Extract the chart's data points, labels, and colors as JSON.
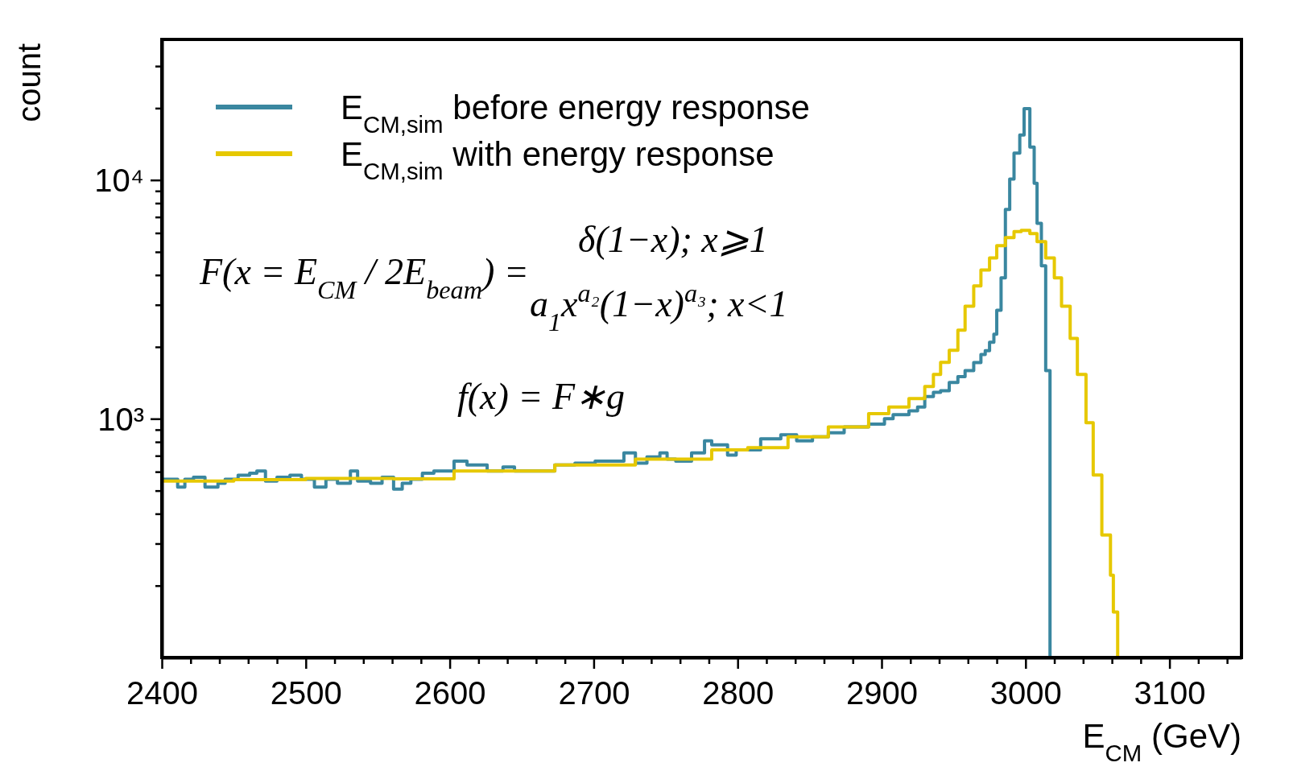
{
  "chart_data": {
    "type": "step",
    "xlabel": "E$_{CM}$ (GeV)",
    "ylabel": "count",
    "log": "y",
    "legend": "top left",
    "xlim": [
      2400,
      3150
    ],
    "ylim": [
      100,
      38800
    ],
    "xticks": [
      2400,
      {
        "value": 2420,
        "label": null
      },
      {
        "value": 2440,
        "label": null
      },
      {
        "value": 2460,
        "label": null
      },
      {
        "value": 2480,
        "label": null
      },
      2500,
      {
        "value": 2520,
        "label": null
      },
      {
        "value": 2540,
        "label": null
      },
      {
        "value": 2560,
        "label": null
      },
      {
        "value": 2580,
        "label": null
      },
      2600,
      {
        "value": 2620,
        "label": null
      },
      {
        "value": 2640,
        "label": null
      },
      {
        "value": 2660,
        "label": null
      },
      {
        "value": 2680,
        "label": null
      },
      2700,
      {
        "value": 2720,
        "label": null
      },
      {
        "value": 2740,
        "label": null
      },
      {
        "value": 2760,
        "label": null
      },
      {
        "value": 2780,
        "label": null
      },
      2800,
      {
        "value": 2820,
        "label": null
      },
      {
        "value": 2840,
        "label": null
      },
      {
        "value": 2860,
        "label": null
      },
      {
        "value": 2880,
        "label": null
      },
      2900,
      {
        "value": 2920,
        "label": null
      },
      {
        "value": 2940,
        "label": null
      },
      {
        "value": 2960,
        "label": null
      },
      {
        "value": 2980,
        "label": null
      },
      3000,
      {
        "value": 3020,
        "label": null
      },
      {
        "value": 3040,
        "label": null
      },
      {
        "value": 3060,
        "label": null
      },
      {
        "value": 3080,
        "label": null
      },
      3100,
      {
        "value": 3120,
        "label": null
      },
      {
        "value": 3140,
        "label": null
      }
    ],
    "yticks": [
      {
        "value": 200,
        "label": null
      },
      {
        "value": 300,
        "label": null
      },
      {
        "value": 400,
        "label": null
      },
      {
        "value": 500,
        "label": null
      },
      {
        "value": 600,
        "label": null
      },
      {
        "value": 700,
        "label": null
      },
      {
        "value": 800,
        "label": null
      },
      {
        "value": 900,
        "label": null
      },
      {
        "value": 1000,
        "label": "10³"
      },
      {
        "value": 2000,
        "label": null
      },
      {
        "value": 3000,
        "label": null
      },
      {
        "value": 4000,
        "label": null
      },
      {
        "value": 5000,
        "label": null
      },
      {
        "value": 6000,
        "label": null
      },
      {
        "value": 7000,
        "label": null
      },
      {
        "value": 8000,
        "label": null
      },
      {
        "value": 9000,
        "label": null
      },
      {
        "value": 10000,
        "label": "10⁴"
      },
      {
        "value": 20000,
        "label": null
      },
      {
        "value": 30000,
        "label": null
      }
    ],
    "annotations": [
      "F(x = E$_{CM}$ / 2E$_{beam}$) =",
      "δ(1−x); x⩾1",
      "a$_{1}$x$^{a₂}$(1−x)$^{a₃}$; x<1",
      "f(x) = F∗g"
    ],
    "series": [
      {
        "name": "E$_{CM,sim}$ before energy response",
        "color": "#3a87a0",
        "x": [
          2400,
          2411,
          2416,
          2422,
          2430,
          2439,
          2444,
          2453,
          2461,
          2466,
          2472,
          2480,
          2489,
          2497,
          2506,
          2514,
          2522,
          2531,
          2536,
          2545,
          2553,
          2561,
          2567,
          2573,
          2581,
          2589,
          2603,
          2612,
          2626,
          2637,
          2645,
          2659,
          2673,
          2687,
          2701,
          2721,
          2729,
          2737,
          2746,
          2751,
          2757,
          2768,
          2777,
          2782,
          2793,
          2799,
          2807,
          2816,
          2830,
          2841,
          2852,
          2863,
          2874,
          2891,
          2902,
          2908,
          2919,
          2925,
          2930,
          2936,
          2941,
          2947,
          2953,
          2958,
          2964,
          2969,
          2972,
          2975,
          2978,
          2980,
          2983,
          2986,
          2989,
          2992,
          2996,
          2999,
          3003,
          3006,
          3008,
          3011,
          3014,
          3017
        ],
        "values": [
          558,
          517,
          558,
          569,
          517,
          537,
          558,
          580,
          592,
          604,
          548,
          569,
          580,
          558,
          517,
          558,
          537,
          604,
          548,
          537,
          569,
          507,
          537,
          558,
          592,
          604,
          665,
          640,
          604,
          628,
          604,
          604,
          640,
          652,
          665,
          719,
          652,
          692,
          719,
          678,
          665,
          719,
          808,
          777,
          705,
          741,
          741,
          824,
          856,
          808,
          840,
          873,
          925,
          950,
          1000,
          1040,
          1080,
          1120,
          1240,
          1290,
          1310,
          1420,
          1500,
          1590,
          1720,
          1860,
          1930,
          2090,
          2260,
          2850,
          3890,
          7530,
          10100,
          12970,
          15450,
          19900,
          13740,
          9680,
          6580,
          4370,
          1590,
          100
        ]
      },
      {
        "name": "E$_{CM,sim}$ with energy response",
        "color": "#e6c800",
        "x": [
          2400,
          2450,
          2500,
          2561,
          2603,
          2673,
          2729,
          2782,
          2807,
          2835,
          2863,
          2891,
          2905,
          2919,
          2930,
          2936,
          2941,
          2947,
          2953,
          2958,
          2964,
          2969,
          2975,
          2980,
          2986,
          2992,
          2997,
          3003,
          3008,
          3014,
          3020,
          3025,
          3031,
          3036,
          3042,
          3047,
          3053,
          3059,
          3061,
          3064
        ],
        "values": [
          548,
          556,
          562,
          560,
          604,
          640,
          678,
          741,
          757,
          840,
          925,
          1050,
          1120,
          1214,
          1364,
          1533,
          1722,
          1935,
          2350,
          2960,
          3600,
          4200,
          4720,
          5310,
          5740,
          6080,
          6150,
          5960,
          5520,
          4720,
          3890,
          2960,
          2170,
          1533,
          962,
          581,
          326,
          221,
          155,
          100
        ]
      }
    ]
  }
}
